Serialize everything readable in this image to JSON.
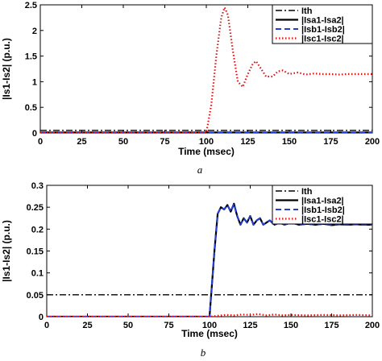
{
  "chart_data": [
    {
      "type": "line",
      "caption": "a",
      "xlabel": "Time (msec)",
      "ylabel": "|Is1-Is2| (p.u.)",
      "xlim": [
        0,
        200
      ],
      "ylim": [
        0,
        2.5
      ],
      "xticks": [
        "0",
        "25",
        "50",
        "75",
        "100",
        "125",
        "150",
        "175",
        "200"
      ],
      "yticks": [
        "0",
        "0.5",
        "1",
        "1.5",
        "2",
        "2.5"
      ],
      "legend_position": "top-right",
      "series": [
        {
          "name": "Ith",
          "color": "#000000",
          "style": "dashdot",
          "x": [
            0,
            200
          ],
          "y": [
            0.05,
            0.05
          ]
        },
        {
          "name": "|Isa1-Isa2|",
          "color": "#000000",
          "style": "solid",
          "x": [
            0,
            200
          ],
          "y": [
            0.01,
            0.01
          ]
        },
        {
          "name": "|Isb1-Isb2|",
          "color": "#1f3fd8",
          "style": "dashed",
          "x": [
            0,
            200
          ],
          "y": [
            0.01,
            0.01
          ]
        },
        {
          "name": "|Isc1-Isc2|",
          "color": "#e01010",
          "style": "dotted",
          "x": [
            0,
            100,
            103,
            106,
            109,
            111,
            113,
            116,
            119,
            122,
            125,
            128,
            130,
            133,
            136,
            140,
            143,
            146,
            150,
            155,
            160,
            165,
            170,
            175,
            180,
            185,
            190,
            195,
            200
          ],
          "y": [
            0,
            0,
            0.55,
            1.5,
            2.25,
            2.45,
            2.3,
            1.6,
            1.0,
            0.9,
            1.15,
            1.35,
            1.4,
            1.25,
            1.1,
            1.1,
            1.2,
            1.22,
            1.15,
            1.18,
            1.14,
            1.16,
            1.15,
            1.15,
            1.14,
            1.15,
            1.15,
            1.15,
            1.15
          ]
        }
      ]
    },
    {
      "type": "line",
      "caption": "b",
      "xlabel": "Time (msec)",
      "ylabel": "|Is1-Is2| (p.u.)",
      "xlim": [
        0,
        200
      ],
      "ylim": [
        0,
        0.3
      ],
      "xticks": [
        "0",
        "25",
        "50",
        "75",
        "100",
        "125",
        "150",
        "175",
        "200"
      ],
      "yticks": [
        "0",
        "0.05",
        "0.1",
        "0.15",
        "0.2",
        "0.25",
        "0.3"
      ],
      "legend_position": "top-right",
      "series": [
        {
          "name": "Ith",
          "color": "#000000",
          "style": "dashdot",
          "x": [
            0,
            200
          ],
          "y": [
            0.05,
            0.05
          ]
        },
        {
          "name": "|Isa1-Isa2|",
          "color": "#000000",
          "style": "solid",
          "x": [
            0,
            100,
            103,
            105,
            107,
            109,
            111,
            113,
            115,
            117,
            119,
            121,
            123,
            125,
            127,
            129,
            131,
            133,
            135,
            137,
            140,
            143,
            146,
            150,
            155,
            160,
            165,
            170,
            175,
            180,
            185,
            190,
            195,
            200
          ],
          "y": [
            0,
            0,
            0.15,
            0.235,
            0.25,
            0.245,
            0.255,
            0.24,
            0.258,
            0.23,
            0.21,
            0.225,
            0.215,
            0.23,
            0.21,
            0.22,
            0.225,
            0.21,
            0.215,
            0.22,
            0.21,
            0.215,
            0.21,
            0.215,
            0.21,
            0.212,
            0.21,
            0.212,
            0.209,
            0.211,
            0.21,
            0.211,
            0.21,
            0.21
          ]
        },
        {
          "name": "|Isb1-Isb2|",
          "color": "#1f3fd8",
          "style": "dashed",
          "x": [
            0,
            100,
            103,
            105,
            107,
            109,
            111,
            113,
            115,
            117,
            119,
            121,
            123,
            125,
            127,
            129,
            131,
            133,
            135,
            137,
            140,
            143,
            146,
            150,
            155,
            160,
            165,
            170,
            175,
            180,
            185,
            190,
            195,
            200
          ],
          "y": [
            0,
            0,
            0.15,
            0.235,
            0.25,
            0.245,
            0.255,
            0.24,
            0.258,
            0.23,
            0.21,
            0.225,
            0.215,
            0.23,
            0.21,
            0.22,
            0.225,
            0.21,
            0.215,
            0.22,
            0.21,
            0.215,
            0.21,
            0.215,
            0.21,
            0.212,
            0.21,
            0.212,
            0.209,
            0.211,
            0.21,
            0.211,
            0.21,
            0.21
          ]
        },
        {
          "name": "|Isc1-Isc2|",
          "color": "#e01010",
          "style": "dotted",
          "x": [
            0,
            100,
            105,
            110,
            115,
            120,
            125,
            130,
            135,
            140,
            145,
            150,
            160,
            170,
            180,
            190,
            200
          ],
          "y": [
            0,
            0,
            0.002,
            0.004,
            0.003,
            0.005,
            0.004,
            0.006,
            0.003,
            0.005,
            0.003,
            0.004,
            0.003,
            0.004,
            0.003,
            0.004,
            0.003
          ]
        }
      ]
    }
  ]
}
